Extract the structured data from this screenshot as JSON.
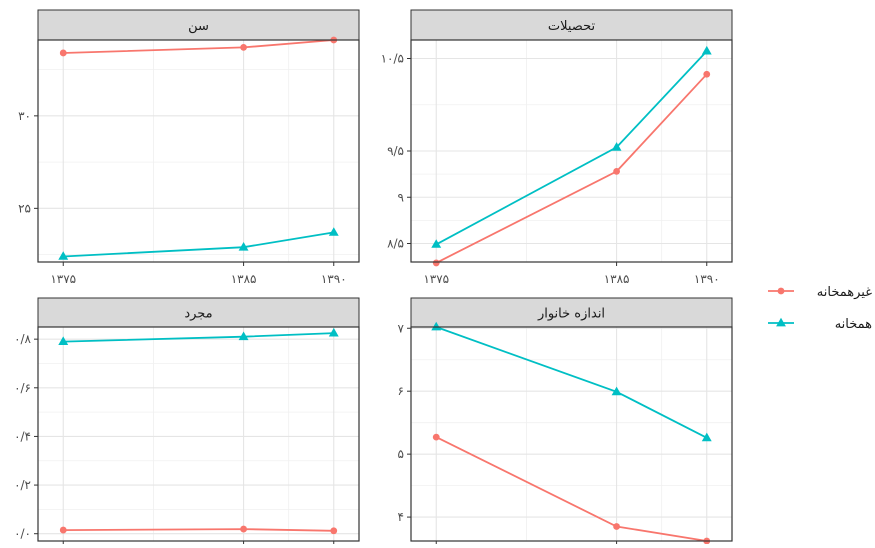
{
  "chart_data": {
    "type": "line",
    "legend": {
      "placement": "right",
      "series": [
        {
          "name": "غیرهمخانه",
          "color": "#F8766D",
          "marker": "circle"
        },
        {
          "name": "همخانه",
          "color": "#00BFC4",
          "marker": "triangle"
        }
      ]
    },
    "x": [
      1375,
      1385,
      1390
    ],
    "xtick_labels": [
      "۱۳۷۵",
      "۱۳۸۵",
      "۱۳۹۰"
    ],
    "panels": [
      {
        "title": "سن",
        "ylim": [
          22.1,
          34.1
        ],
        "yticks": [
          25,
          30
        ],
        "ytick_labels": [
          "۲۵",
          "۳۰"
        ],
        "series": [
          {
            "name": "غیرهمخانه",
            "values": [
              33.4,
              33.7,
              34.1
            ]
          },
          {
            "name": "همخانه",
            "values": [
              22.4,
              22.9,
              23.7
            ]
          }
        ]
      },
      {
        "title": "تحصیلات",
        "ylim": [
          8.3,
          10.7
        ],
        "yticks": [
          8.5,
          9,
          9.5,
          10.5
        ],
        "ytick_labels": [
          "۸/۵",
          "۹",
          "۹/۵",
          "۱۰/۵"
        ],
        "series": [
          {
            "name": "غیرهمخانه",
            "values": [
              8.29,
              9.28,
              10.33
            ]
          },
          {
            "name": "همخانه",
            "values": [
              8.49,
              9.54,
              10.58
            ]
          }
        ]
      },
      {
        "title": "مجرد",
        "ylim": [
          -0.03,
          0.85
        ],
        "yticks": [
          0,
          0.2,
          0.4,
          0.6,
          0.8
        ],
        "ytick_labels": [
          "۰/۰",
          "۰/۲",
          "۰/۴",
          "۰/۶",
          "۰/۸"
        ],
        "series": [
          {
            "name": "غیرهمخانه",
            "values": [
              0.015,
              0.019,
              0.012
            ]
          },
          {
            "name": "همخانه",
            "values": [
              0.79,
              0.81,
              0.825
            ]
          }
        ]
      },
      {
        "title": "اندازه خانوار",
        "ylim": [
          3.62,
          7.02
        ],
        "yticks": [
          4,
          5,
          6,
          7
        ],
        "ytick_labels": [
          "۴",
          "۵",
          "۶",
          "۷"
        ],
        "series": [
          {
            "name": "غیرهمخانه",
            "values": [
              5.27,
              3.85,
              3.62
            ]
          },
          {
            "name": "همخانه",
            "values": [
              7.02,
              5.99,
              5.26
            ]
          }
        ]
      }
    ]
  }
}
